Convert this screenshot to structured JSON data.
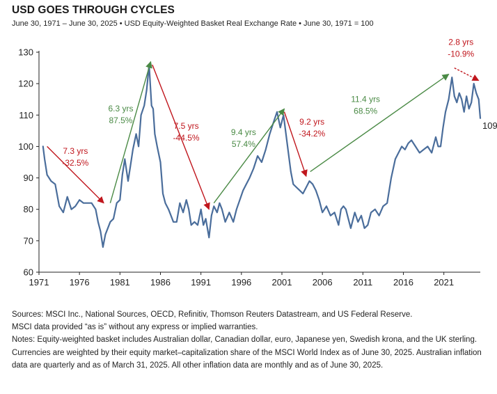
{
  "title": "USD GOES THROUGH CYCLES",
  "subtitle": "June 30, 1971 – June 30, 2025 • USD Equity-Weighted Basket Real Exchange Rate • June 30, 1971 = 100",
  "notes": {
    "sources_line1": "Sources: MSCI Inc., National Sources, OECD, Refinitiv, Thomson Reuters Datastream, and US Federal Reserve.",
    "sources_line2": "MSCI data provided “as is” without any express or implied warranties.",
    "notes_text": "Notes: Equity-weighted basket includes Australian dollar, Canadian dollar, euro, Japanese yen, Swedish krona, and the UK sterling. Currencies are weighted by their equity market–capitalization share of the MSCI World Index as of June 30, 2025. Australian inflation data are quarterly and as of March 31, 2025. All other inflation data are monthly and as of June 30, 2025."
  },
  "colors": {
    "line": "#4a6d9b",
    "up": "#4a8a45",
    "down": "#c0161d",
    "axis": "#222222"
  },
  "chart_data": {
    "type": "line",
    "xlim": [
      1971,
      2025.5
    ],
    "ylim": [
      60,
      130
    ],
    "x_ticks": [
      "1971",
      "1976",
      "1981",
      "1986",
      "1991",
      "1996",
      "2001",
      "2006",
      "2011",
      "2016",
      "2021"
    ],
    "y_ticks": [
      "60",
      "70",
      "80",
      "90",
      "100",
      "110",
      "120",
      "130"
    ],
    "grid": false,
    "series": [
      {
        "x": [
          1971.5,
          1971.7,
          1972.0,
          1972.5,
          1973.0,
          1973.5,
          1974.0,
          1974.5,
          1975.0,
          1975.5,
          1976.0,
          1976.5,
          1977.0,
          1977.5,
          1978.0,
          1978.3,
          1978.6,
          1978.9,
          1979.2,
          1979.5,
          1979.8,
          1980.2,
          1980.6,
          1981.0,
          1981.3,
          1981.6,
          1982.0,
          1982.3,
          1982.6,
          1983.0,
          1983.3,
          1983.6,
          1984.0,
          1984.3,
          1984.6,
          1984.9,
          1985.1,
          1985.3,
          1985.6,
          1986.0,
          1986.3,
          1986.6,
          1987.0,
          1987.3,
          1987.6,
          1988.0,
          1988.4,
          1988.8,
          1989.2,
          1989.5,
          1989.8,
          1990.2,
          1990.6,
          1991.0,
          1991.3,
          1991.6,
          1992.0,
          1992.3,
          1992.6,
          1993.0,
          1993.3,
          1993.6,
          1994.0,
          1994.5,
          1995.0,
          1995.4,
          1995.8,
          1996.2,
          1996.6,
          1997.0,
          1997.5,
          1998.0,
          1998.5,
          1999.0,
          1999.5,
          2000.0,
          2000.4,
          2000.8,
          2001.2,
          2001.5,
          2001.8,
          2002.1,
          2002.4,
          2002.8,
          2003.2,
          2003.6,
          2004.0,
          2004.4,
          2004.8,
          2005.2,
          2005.6,
          2006.0,
          2006.5,
          2007.0,
          2007.5,
          2008.0,
          2008.3,
          2008.6,
          2008.9,
          2009.2,
          2009.5,
          2010.0,
          2010.4,
          2010.8,
          2011.2,
          2011.6,
          2012.0,
          2012.5,
          2013.0,
          2013.5,
          2014.0,
          2014.5,
          2015.0,
          2015.4,
          2015.8,
          2016.2,
          2016.6,
          2017.0,
          2017.5,
          2018.0,
          2018.5,
          2019.0,
          2019.5,
          2020.0,
          2020.3,
          2020.6,
          2020.9,
          2021.2,
          2021.6,
          2022.0,
          2022.3,
          2022.6,
          2022.9,
          2023.2,
          2023.5,
          2023.8,
          2024.1,
          2024.4,
          2024.7,
          2025.0,
          2025.3,
          2025.5
        ],
        "values": [
          100,
          96,
          91,
          89,
          88,
          81,
          79,
          84,
          80,
          81,
          83,
          82,
          82,
          82,
          80,
          76,
          73,
          68,
          72,
          74,
          76,
          77,
          82,
          83,
          91,
          96,
          89,
          94,
          99,
          104,
          100,
          110,
          113,
          118,
          126,
          113,
          112,
          104,
          100,
          95,
          85,
          82,
          80,
          78,
          76,
          76,
          82,
          79,
          83,
          80,
          75,
          76,
          75,
          80,
          75,
          77,
          71,
          78,
          81,
          79,
          82,
          80,
          76,
          79,
          76,
          80,
          83,
          86,
          88,
          90,
          93,
          97,
          95,
          99,
          104,
          108,
          111,
          106,
          110,
          104,
          98,
          92,
          88,
          87,
          86,
          85,
          87,
          89,
          88,
          86,
          83,
          79,
          81,
          78,
          79,
          75,
          80,
          81,
          80,
          77,
          74,
          79,
          76,
          78,
          74,
          75,
          79,
          80,
          78,
          81,
          82,
          90,
          96,
          98,
          100,
          99,
          101,
          102,
          100,
          98,
          99,
          100,
          98,
          103,
          100,
          100,
          106,
          111,
          115,
          122,
          116,
          114,
          117,
          115,
          111,
          116,
          112,
          114,
          120,
          117,
          115,
          109
        ]
      }
    ],
    "annotations": [
      {
        "years": "7.3 yrs",
        "pct": "-32.5%",
        "kind": "down",
        "from": [
          1972.0,
          100
        ],
        "to": [
          1979.0,
          82
        ]
      },
      {
        "years": "6.3 yrs",
        "pct": "87.5%",
        "kind": "up",
        "from": [
          1979.8,
          82
        ],
        "to": [
          1984.8,
          127
        ]
      },
      {
        "years": "7.5 yrs",
        "pct": "-44.5%",
        "kind": "down",
        "from": [
          1985.0,
          126
        ],
        "to": [
          1992.0,
          80
        ]
      },
      {
        "years": "9.4 yrs",
        "pct": "57.4%",
        "kind": "up",
        "from": [
          1992.6,
          82
        ],
        "to": [
          2001.3,
          112
        ]
      },
      {
        "years": "9.2 yrs",
        "pct": "-34.2%",
        "kind": "down",
        "from": [
          2001.3,
          111
        ],
        "to": [
          2004.0,
          90.5
        ]
      },
      {
        "years": "11.4 yrs",
        "pct": "68.5%",
        "kind": "up",
        "from": [
          2004.5,
          92
        ],
        "to": [
          2021.6,
          123
        ]
      },
      {
        "years": "2.8 yrs",
        "pct": "-10.9%",
        "kind": "down",
        "from": [
          2022.3,
          125
        ],
        "to": [
          2025.3,
          121
        ]
      }
    ],
    "end_label": "109"
  }
}
